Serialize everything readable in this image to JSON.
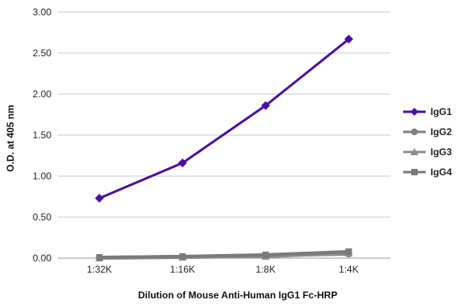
{
  "chart_data": {
    "type": "line",
    "title": "",
    "xlabel": "Dilution of Mouse Anti-Human IgG1 Fc-HRP",
    "ylabel": "O.D. at 405 nm",
    "categories": [
      "1:32K",
      "1:16K",
      "1:8K",
      "1:4K"
    ],
    "ylim": [
      0,
      3.0
    ],
    "yticks": [
      "0.00",
      "0.50",
      "1.00",
      "1.50",
      "2.00",
      "2.50",
      "3.00"
    ],
    "grid": true,
    "legend": "right",
    "series": [
      {
        "name": "IgG1",
        "color": "#4B0FA8",
        "marker": "diamond",
        "values": [
          0.73,
          1.16,
          1.86,
          2.67
        ]
      },
      {
        "name": "IgG2",
        "color": "#808080",
        "marker": "circle",
        "values": [
          0.01,
          0.02,
          0.03,
          0.05
        ]
      },
      {
        "name": "IgG3",
        "color": "#8C8C8C",
        "marker": "triangle",
        "values": [
          0.0,
          0.01,
          0.02,
          0.06
        ]
      },
      {
        "name": "IgG4",
        "color": "#7A7A7A",
        "marker": "square",
        "values": [
          0.01,
          0.02,
          0.04,
          0.08
        ]
      }
    ]
  }
}
